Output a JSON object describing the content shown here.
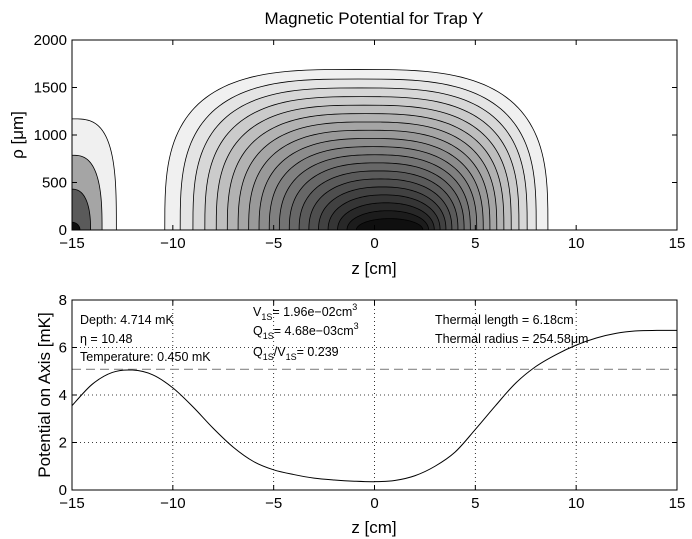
{
  "chart_data": [
    {
      "type": "contour",
      "title": "Magnetic Potential for Trap Y",
      "xlabel": "z [cm]",
      "ylabel": "ρ [μm]",
      "xlim": [
        -15,
        15
      ],
      "ylim": [
        0,
        2000
      ],
      "xticks": [
        -15,
        -10,
        -5,
        0,
        5,
        10,
        15
      ],
      "yticks": [
        0,
        500,
        1000,
        1500,
        2000
      ],
      "xtick_labels": [
        "−15",
        "−10",
        "−5",
        "0",
        "5",
        "10",
        "15"
      ],
      "ytick_labels": [
        "0",
        "500",
        "1000",
        "1500",
        "2000"
      ],
      "colormap": "gray",
      "grid": false,
      "regions": [
        {
          "z_left": -10.4,
          "z_right": 8.6,
          "rho_top": 1690,
          "z_center": 0.8,
          "rho_center": 0,
          "levels": 19,
          "innermost": {
            "z_left": -0.9,
            "z_right": 2.4,
            "rho_top": 120
          }
        },
        {
          "z_left": -15,
          "z_right": -12.8,
          "rho_top": 1170,
          "z_center": -15,
          "rho_center": 0,
          "levels": 4,
          "edge_only": true
        }
      ]
    },
    {
      "type": "line",
      "xlabel": "z [cm]",
      "ylabel": "Potential on Axis [mK]",
      "xlim": [
        -15,
        15
      ],
      "ylim": [
        0,
        8
      ],
      "xticks": [
        -15,
        -10,
        -5,
        0,
        5,
        10,
        15
      ],
      "yticks": [
        0,
        2,
        4,
        6,
        8
      ],
      "xtick_labels": [
        "−15",
        "−10",
        "−5",
        "0",
        "5",
        "10",
        "15"
      ],
      "ytick_labels": [
        "0",
        "2",
        "4",
        "6",
        "8"
      ],
      "grid": true,
      "grid_style": "dotted",
      "series": [
        {
          "color": "#000000",
          "x": [
            -15,
            -14,
            -13,
            -12,
            -11,
            -10,
            -9,
            -8,
            -7,
            -6,
            -5,
            -4,
            -3,
            -2,
            -1,
            0,
            1,
            2,
            3,
            4,
            5,
            6,
            7,
            8,
            9,
            10,
            11,
            12,
            13,
            14,
            15
          ],
          "y": [
            3.55,
            4.45,
            4.95,
            5.05,
            4.85,
            4.3,
            3.5,
            2.6,
            1.8,
            1.2,
            0.85,
            0.65,
            0.5,
            0.42,
            0.37,
            0.35,
            0.4,
            0.6,
            1.0,
            1.6,
            2.55,
            3.55,
            4.5,
            5.2,
            5.7,
            6.1,
            6.4,
            6.6,
            6.7,
            6.72,
            6.72
          ]
        }
      ],
      "reference_lines": [
        {
          "y": 5.08,
          "style": "dashed",
          "color": "#888888"
        }
      ],
      "annotations": {
        "depth": "Depth: 4.714 mK",
        "eta": "η = 10.48",
        "temperature": "Temperature: 0.450 mK",
        "v_prefix": "V",
        "v_sub": "1S",
        "v_value": "= 1.96e−02cm",
        "v_sup": "3",
        "q_prefix": "Q",
        "q_sub": "1S",
        "q_value": "= 4.68e−03cm",
        "q_sup": "3",
        "ratio_q": "Q",
        "ratio_q_sub": "1S",
        "ratio_slash": "/V",
        "ratio_v_sub": "1S",
        "ratio_value": "= 0.239",
        "thermal_length": "Thermal length = 6.18cm",
        "thermal_radius": "Thermal radius = 254.58μm"
      }
    }
  ]
}
